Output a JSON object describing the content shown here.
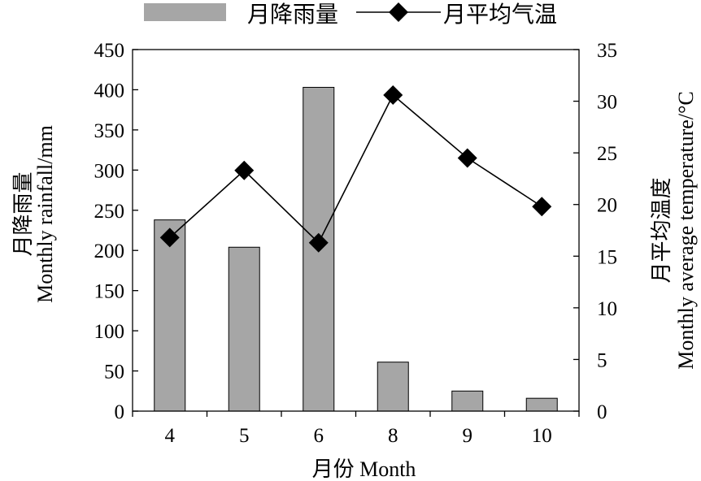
{
  "chart_data": {
    "type": "bar",
    "categories": [
      "4",
      "5",
      "6",
      "8",
      "9",
      "10"
    ],
    "series": [
      {
        "name": "月降雨量",
        "type": "bar",
        "axis": "left",
        "color": "#a6a6a6",
        "values": [
          238,
          204,
          403,
          61,
          25,
          16
        ]
      },
      {
        "name": "月平均气温",
        "type": "line",
        "axis": "right",
        "color": "#000000",
        "marker": "diamond",
        "values": [
          16.8,
          23.3,
          16.3,
          30.6,
          24.5,
          19.8
        ]
      }
    ],
    "xlabel": "月份 Month",
    "ylabel_left": [
      "月降雨量",
      "Monthly rainfall/mm"
    ],
    "ylabel_right": [
      "月平均温度",
      "Monthly average temperature/°C"
    ],
    "ylim_left": [
      0,
      450
    ],
    "yticks_left": [
      "0",
      "50",
      "100",
      "150",
      "200",
      "250",
      "300",
      "350",
      "400",
      "450"
    ],
    "ylim_right": [
      0,
      35
    ],
    "yticks_right": [
      "0",
      "5",
      "10",
      "15",
      "20",
      "25",
      "30",
      "35"
    ],
    "legend_position": "top",
    "grid": false
  }
}
